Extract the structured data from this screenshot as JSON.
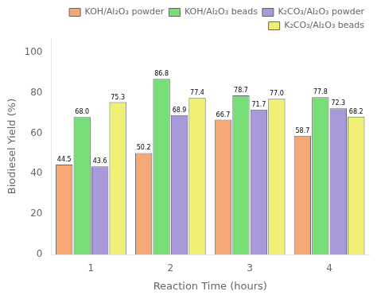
{
  "chart_data": {
    "type": "bar",
    "categories": [
      1,
      2,
      3,
      4
    ],
    "series": [
      {
        "name": "KOH/Al₂O₃ powder",
        "color": "#F5A875",
        "values": [
          44.5,
          50.2,
          66.7,
          58.7
        ],
        "value_labels": [
          "44.5",
          "50.2",
          "66.7",
          "58.7"
        ]
      },
      {
        "name": "KOH/Al₂O₃ beads",
        "color": "#77DD77",
        "values": [
          68.0,
          86.8,
          78.7,
          77.8
        ],
        "value_labels": [
          "68.0",
          "86.8",
          "78.7",
          "77.8"
        ]
      },
      {
        "name": "K₂CO₃/Al₂O₃ powder",
        "color": "#A899D8",
        "values": [
          43.6,
          68.9,
          71.7,
          72.3
        ],
        "value_labels": [
          "43.6",
          "68.9",
          "71.7",
          "72.3"
        ]
      },
      {
        "name": "K₂CO₃/Al₂O₃ beads",
        "color": "#F0F077",
        "values": [
          75.3,
          77.4,
          77.0,
          68.2
        ],
        "value_labels": [
          "75.3",
          "77.4",
          "77.0",
          "68.2"
        ]
      }
    ],
    "xlabel": "Reaction Time (hours)",
    "ylabel": "Biodiesel Yield (%)",
    "ylim": [
      0,
      107
    ],
    "yticks": [
      0,
      20,
      40,
      60,
      80,
      100
    ],
    "grid": false,
    "legend": "upper right",
    "data_labels": true
  }
}
